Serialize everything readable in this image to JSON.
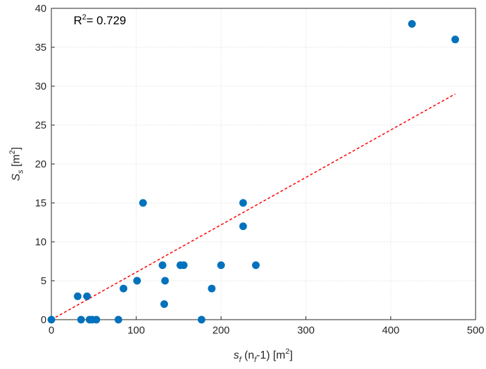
{
  "chart_data": {
    "type": "scatter",
    "title": "",
    "annotation": {
      "text": "R",
      "sup": "2",
      "rest": "= 0.729"
    },
    "xlabel": {
      "pre": "s",
      "sub1": "f",
      "mid": " (n",
      "sub2": "f",
      "post": "-1) [m",
      "sup": "2",
      "end": "]"
    },
    "ylabel": {
      "pre": "S",
      "sub": "s",
      "mid": " [m",
      "sup": "2",
      "end": "]"
    },
    "xlim": [
      0,
      500
    ],
    "ylim": [
      0,
      40
    ],
    "xticks": [
      "0",
      "100",
      "200",
      "300",
      "400",
      "500"
    ],
    "yticks": [
      "0",
      "5",
      "10",
      "15",
      "20",
      "25",
      "30",
      "35",
      "40"
    ],
    "grid": true,
    "marker_color": "#0072BD",
    "fit_color": "#FF0000",
    "points": [
      {
        "x": 0,
        "y": 0
      },
      {
        "x": 31,
        "y": 3
      },
      {
        "x": 35,
        "y": 0
      },
      {
        "x": 42,
        "y": 3
      },
      {
        "x": 45,
        "y": 0
      },
      {
        "x": 48,
        "y": 0
      },
      {
        "x": 53,
        "y": 0
      },
      {
        "x": 79,
        "y": 0
      },
      {
        "x": 85,
        "y": 4
      },
      {
        "x": 101,
        "y": 5
      },
      {
        "x": 108,
        "y": 15
      },
      {
        "x": 131,
        "y": 7
      },
      {
        "x": 133,
        "y": 2
      },
      {
        "x": 134,
        "y": 5
      },
      {
        "x": 152,
        "y": 7
      },
      {
        "x": 156,
        "y": 7
      },
      {
        "x": 177,
        "y": 0
      },
      {
        "x": 189,
        "y": 4
      },
      {
        "x": 200,
        "y": 7
      },
      {
        "x": 226,
        "y": 15
      },
      {
        "x": 226,
        "y": 12
      },
      {
        "x": 241,
        "y": 7
      },
      {
        "x": 425,
        "y": 38
      },
      {
        "x": 476,
        "y": 36
      }
    ],
    "fit_line": {
      "x": [
        0,
        476
      ],
      "y": [
        0,
        29
      ]
    }
  }
}
